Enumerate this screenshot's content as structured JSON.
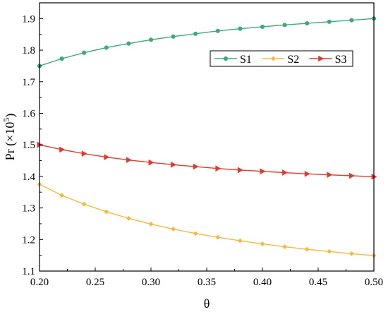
{
  "chart_data": {
    "type": "line",
    "xlabel": "θ",
    "ylabel": "Pr (×10",
    "ylabel_exponent": "5",
    "ylabel_suffix": ")",
    "xlim": [
      0.2,
      0.5
    ],
    "ylim": [
      1.1,
      1.95
    ],
    "x_ticks": [
      0.2,
      0.25,
      0.3,
      0.35,
      0.4,
      0.45,
      0.5
    ],
    "x_tick_labels": [
      "0.20",
      "0.25",
      "0.30",
      "0.35",
      "0.40",
      "0.45",
      "0.50"
    ],
    "y_ticks": [
      1.1,
      1.2,
      1.3,
      1.4,
      1.5,
      1.6,
      1.7,
      1.8,
      1.9
    ],
    "y_tick_labels": [
      "1.1",
      "1.2",
      "1.3",
      "1.4",
      "1.5",
      "1.6",
      "1.7",
      "1.8",
      "1.9"
    ],
    "grid": false,
    "legend_position": "top-right",
    "x": [
      0.2,
      0.22,
      0.24,
      0.26,
      0.28,
      0.3,
      0.32,
      0.34,
      0.36,
      0.38,
      0.4,
      0.42,
      0.44,
      0.46,
      0.48,
      0.5
    ],
    "series": [
      {
        "name": "S1",
        "color": "#3daa7d",
        "marker": "circle",
        "values": [
          1.75,
          1.773,
          1.792,
          1.808,
          1.821,
          1.833,
          1.843,
          1.852,
          1.861,
          1.868,
          1.874,
          1.88,
          1.885,
          1.89,
          1.895,
          1.9
        ]
      },
      {
        "name": "S2",
        "color": "#f5b93f",
        "marker": "diamond",
        "values": [
          1.375,
          1.34,
          1.312,
          1.288,
          1.267,
          1.249,
          1.233,
          1.219,
          1.207,
          1.196,
          1.186,
          1.177,
          1.169,
          1.162,
          1.155,
          1.149
        ]
      },
      {
        "name": "S3",
        "color": "#e03b2e",
        "marker": "triangle-right",
        "values": [
          1.5,
          1.485,
          1.472,
          1.461,
          1.452,
          1.444,
          1.437,
          1.431,
          1.425,
          1.42,
          1.416,
          1.412,
          1.408,
          1.405,
          1.402,
          1.399
        ]
      }
    ]
  }
}
